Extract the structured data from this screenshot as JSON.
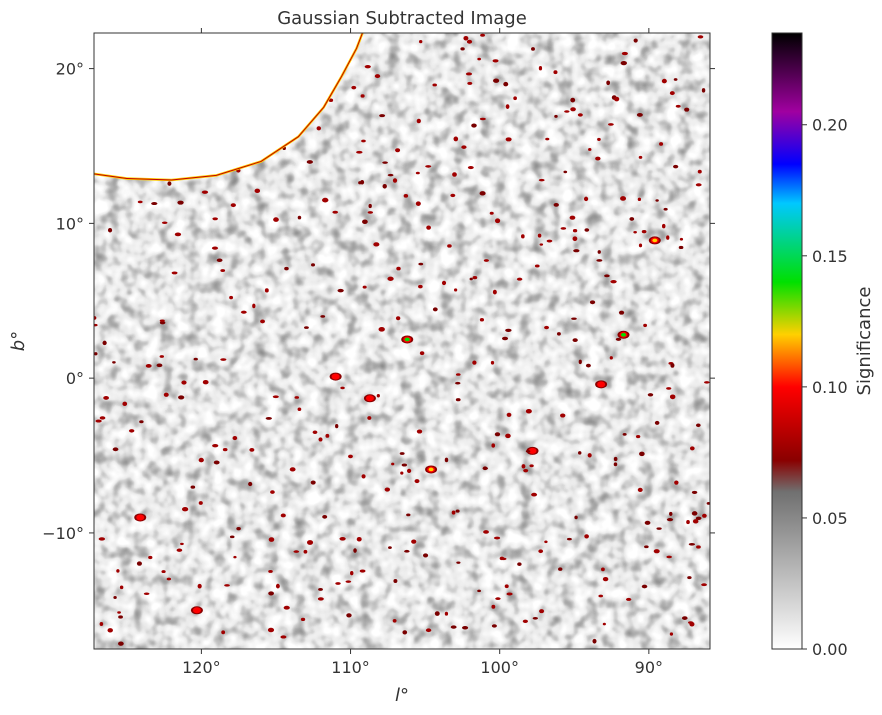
{
  "chart_data": {
    "type": "heatmap",
    "title": "Gaussian Subtracted Image",
    "xlabel": "l°",
    "ylabel": "b°",
    "xlim": [
      127.2,
      85.9
    ],
    "ylim": [
      -17.5,
      22.3
    ],
    "x_ticks": [
      {
        "value": 120,
        "label": "120°"
      },
      {
        "value": 110,
        "label": "110°"
      },
      {
        "value": 100,
        "label": "100°"
      },
      {
        "value": 90,
        "label": "90°"
      }
    ],
    "y_ticks": [
      {
        "value": 20,
        "label": "20°"
      },
      {
        "value": 10,
        "label": "10°"
      },
      {
        "value": 0,
        "label": "0°"
      },
      {
        "value": -10,
        "label": "−10°"
      }
    ],
    "colorbar": {
      "label": "Significance",
      "range": [
        0.0,
        0.235
      ],
      "ticks": [
        {
          "value": 0.0,
          "label": "0.00"
        },
        {
          "value": 0.05,
          "label": "0.05"
        },
        {
          "value": 0.1,
          "label": "0.10"
        },
        {
          "value": 0.15,
          "label": "0.15"
        },
        {
          "value": 0.2,
          "label": "0.20"
        }
      ],
      "colormap": [
        {
          "value": 0.0,
          "color": "#ffffff"
        },
        {
          "value": 0.06,
          "color": "#707070"
        },
        {
          "value": 0.072,
          "color": "#8a0000"
        },
        {
          "value": 0.1,
          "color": "#ff0000"
        },
        {
          "value": 0.12,
          "color": "#ffd000"
        },
        {
          "value": 0.14,
          "color": "#00e000"
        },
        {
          "value": 0.17,
          "color": "#00c8ff"
        },
        {
          "value": 0.185,
          "color": "#0000ff"
        },
        {
          "value": 0.205,
          "color": "#a000a0"
        },
        {
          "value": 0.235,
          "color": "#000000"
        }
      ]
    },
    "masked_region": {
      "description_hidden": true,
      "boundary": [
        [
          127.2,
          13.2
        ],
        [
          125,
          12.9
        ],
        [
          122,
          12.8
        ],
        [
          119,
          13.1
        ],
        [
          116,
          14.0
        ],
        [
          113.5,
          15.6
        ],
        [
          111.8,
          17.5
        ],
        [
          110.6,
          19.5
        ],
        [
          109.6,
          21.3
        ],
        [
          109.2,
          22.3
        ]
      ]
    },
    "hotspots": [
      {
        "l": 106.2,
        "b": 2.5,
        "value": 0.15
      },
      {
        "l": 91.7,
        "b": 2.8,
        "value": 0.14
      },
      {
        "l": 89.6,
        "b": 8.9,
        "value": 0.12
      },
      {
        "l": 111.0,
        "b": 0.1,
        "value": 0.1
      },
      {
        "l": 108.7,
        "b": -1.3,
        "value": 0.1
      },
      {
        "l": 124.1,
        "b": -9.0,
        "value": 0.11
      },
      {
        "l": 104.6,
        "b": -5.9,
        "value": 0.12
      },
      {
        "l": 93.2,
        "b": -0.4,
        "value": 0.1
      },
      {
        "l": 120.3,
        "b": -15.0,
        "value": 0.1
      },
      {
        "l": 97.8,
        "b": -4.7,
        "value": 0.1
      }
    ]
  }
}
